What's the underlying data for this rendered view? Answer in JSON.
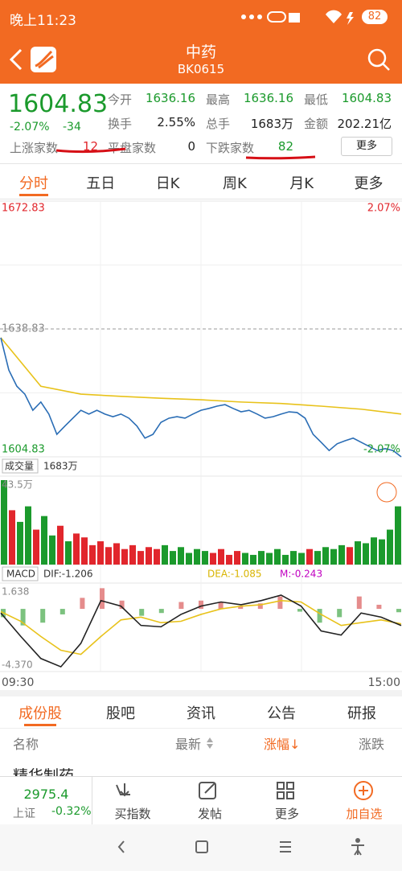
{
  "status": {
    "time": "晚上11:23",
    "battery": "82"
  },
  "header": {
    "title": "中药",
    "code": "BK0615"
  },
  "quote": {
    "price": 1604.83,
    "change_pct": "-2.07%",
    "change": -34.0,
    "stats": [
      {
        "label": "今开",
        "value": 1636.16
      },
      {
        "label": "最高",
        "value": 1636.16
      },
      {
        "label": "最低",
        "value": 1604.83
      },
      {
        "label": "换手",
        "value": "2.55%"
      },
      {
        "label": "总手",
        "value": "1683万"
      },
      {
        "label": "金额",
        "value": "202.21亿"
      }
    ],
    "up_label": "上涨家数",
    "up": 12,
    "flat_label": "平盘家数",
    "flat": 0,
    "down_label": "下跌家数",
    "down": 82,
    "more": "更多"
  },
  "period_tabs": [
    "分时",
    "五日",
    "日K",
    "周K",
    "月K",
    "更多"
  ],
  "intraday": {
    "top_price": 1672.83,
    "top_pct": "2.07%",
    "mid_price": 1638.83,
    "bottom_price": 1604.83,
    "bottom_pct": "-2.07%",
    "ylim": [
      1604.83,
      1672.83
    ],
    "price": [
      1636.5,
      1627.9,
      1623.6,
      1621.5,
      1617.2,
      1619.4,
      1616.2,
      1610.8,
      1613.0,
      1615.1,
      1617.2,
      1616.2,
      1617.2,
      1616.2,
      1615.5,
      1616.2,
      1615.1,
      1613.0,
      1609.8,
      1610.8,
      1614.0,
      1615.1,
      1615.5,
      1615.1,
      1616.2,
      1617.2,
      1617.7,
      1618.3,
      1618.7,
      1617.7,
      1616.8,
      1617.2,
      1616.2,
      1615.1,
      1615.5,
      1616.2,
      1616.8,
      1616.6,
      1615.1,
      1610.8,
      1608.7,
      1606.5,
      1608.3,
      1609.1,
      1609.8,
      1608.7,
      1607.6,
      1606.5,
      1607.0,
      1606.5,
      1604.83
    ],
    "avg": [
      1636.5,
      1623.6,
      1621.5,
      1620.9,
      1620.4,
      1620.0,
      1619.4,
      1619.0,
      1618.3,
      1617.5,
      1616.2
    ],
    "price_color": "#2a6db5",
    "avg_color": "#e8c21a",
    "volume_label": "成交量",
    "volume_total": "1683万",
    "volume_max_label": "43.5万",
    "volume_ylim": [
      0,
      43.5
    ],
    "volume": [
      43.5,
      28,
      22,
      30,
      18,
      25,
      15,
      20,
      12,
      16,
      14,
      10,
      12,
      9,
      11,
      8,
      10,
      7,
      9,
      8,
      10,
      7,
      9,
      6,
      8,
      7,
      6,
      8,
      5,
      7,
      6,
      5,
      7,
      6,
      8,
      5,
      7,
      6,
      8,
      7,
      9,
      8,
      10,
      9,
      12,
      11,
      14,
      13,
      18,
      30
    ],
    "volume_up": [
      false,
      true,
      false,
      false,
      true,
      false,
      false,
      true,
      false,
      true,
      true,
      true,
      true,
      true,
      true,
      true,
      true,
      true,
      true,
      true,
      false,
      false,
      false,
      false,
      false,
      false,
      true,
      true,
      true,
      true,
      false,
      false,
      false,
      false,
      false,
      false,
      false,
      false,
      true,
      false,
      false,
      false,
      false,
      true,
      false,
      false,
      false,
      false,
      false,
      false
    ],
    "macd_label": "MACD",
    "dif_label": "DIF:-1.206",
    "dea_label": "DEA:-1.085",
    "m_label": "M:-0.243",
    "macd_top": 1.638,
    "macd_bottom": "-4.370",
    "macd_ylim": [
      -4.37,
      1.638
    ],
    "dif": [
      -0.3,
      -2.0,
      -3.6,
      -4.2,
      -2.5,
      0.6,
      0.2,
      -1.2,
      -1.3,
      -0.4,
      0.2,
      0.5,
      0.3,
      0.6,
      1.0,
      0.2,
      -1.6,
      -1.9,
      -0.3,
      -0.6,
      -1.206
    ],
    "dea": [
      -0.2,
      -0.9,
      -2.0,
      -3.0,
      -3.3,
      -2.0,
      -0.8,
      -0.6,
      -1.0,
      -0.9,
      -0.4,
      0.0,
      0.2,
      0.3,
      0.6,
      0.5,
      -0.4,
      -1.2,
      -1.0,
      -0.8,
      -1.085
    ],
    "macd": [
      -0.6,
      -1.2,
      -1.0,
      -0.4,
      0.8,
      1.5,
      0.6,
      -0.5,
      -0.3,
      0.5,
      0.6,
      0.5,
      0.2,
      0.4,
      0.9,
      -0.2,
      -1.0,
      -0.6,
      0.9,
      0.3,
      -0.243
    ],
    "start_time": "09:30",
    "end_time": "15:00"
  },
  "stock_tabs": [
    "成份股",
    "股吧",
    "资讯",
    "公告",
    "研报"
  ],
  "table": {
    "headers": [
      "名称",
      "最新",
      "涨幅↓",
      "涨跌"
    ],
    "rows": [
      [
        "精华制药"
      ]
    ]
  },
  "bottom_bar": {
    "index_value": 2975.4,
    "index_name": "上证",
    "index_pct": "-0.32%",
    "buttons": [
      "买指数",
      "发帖",
      "更多",
      "加自选"
    ]
  }
}
